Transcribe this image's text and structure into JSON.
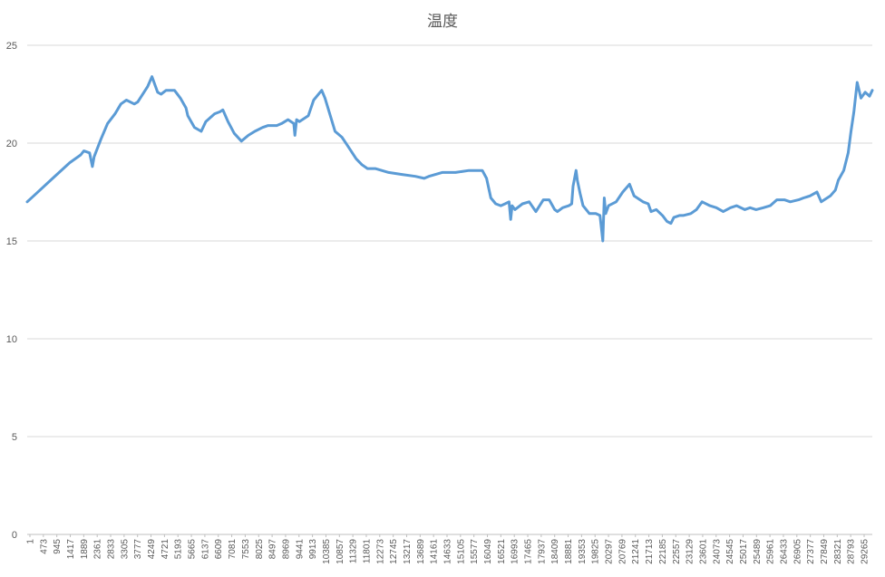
{
  "chart_data": {
    "type": "line",
    "title": "温度",
    "xlabel": "",
    "ylabel": "",
    "ylim": [
      0,
      25
    ],
    "yticks": [
      0,
      5,
      10,
      15,
      20,
      25
    ],
    "grid": true,
    "legend": "none",
    "xticks": [
      "1",
      "473",
      "945",
      "1417",
      "1889",
      "2361",
      "2833",
      "3305",
      "3777",
      "4249",
      "4721",
      "5193",
      "5665",
      "6137",
      "6609",
      "7081",
      "7553",
      "8025",
      "8497",
      "8969",
      "9441",
      "9913",
      "10385",
      "10857",
      "11329",
      "11801",
      "12273",
      "12745",
      "13217",
      "13689",
      "14161",
      "14633",
      "15105",
      "15577",
      "16049",
      "16521",
      "16993",
      "17465",
      "17937",
      "18409",
      "18881",
      "19353",
      "19825",
      "20297",
      "20769",
      "21241",
      "21713",
      "22185",
      "22557",
      "23129",
      "23601",
      "24073",
      "24545",
      "25017",
      "25489",
      "25961",
      "26433",
      "26905",
      "27377",
      "27849",
      "28321",
      "28793",
      "29265"
    ],
    "x_range": [
      1,
      29800
    ],
    "series": [
      {
        "name": "",
        "color": "#5b9bd5",
        "x": [
          1,
          300,
          900,
          1500,
          1889,
          2000,
          2200,
          2300,
          2361,
          2600,
          2833,
          3100,
          3305,
          3500,
          3777,
          3900,
          4249,
          4400,
          4600,
          4721,
          4900,
          5193,
          5400,
          5600,
          5665,
          5900,
          6137,
          6300,
          6609,
          6800,
          6900,
          7081,
          7300,
          7553,
          7800,
          8025,
          8300,
          8497,
          8800,
          8969,
          9200,
          9400,
          9441,
          9500,
          9600,
          9913,
          10100,
          10385,
          10500,
          10857,
          11100,
          11329,
          11600,
          11801,
          12000,
          12273,
          12745,
          13217,
          13689,
          14000,
          14161,
          14633,
          15105,
          15577,
          15900,
          16049,
          16200,
          16350,
          16521,
          16700,
          16850,
          16993,
          17050,
          17100,
          17200,
          17465,
          17700,
          17937,
          18200,
          18409,
          18600,
          18700,
          18881,
          19100,
          19200,
          19250,
          19353,
          19400,
          19500,
          19600,
          19825,
          20050,
          20200,
          20297,
          20350,
          20400,
          20500,
          20769,
          21000,
          21241,
          21400,
          21713,
          21900,
          22000,
          22185,
          22400,
          22557,
          22700,
          22800,
          23000,
          23129,
          23400,
          23601,
          23800,
          24073,
          24300,
          24545,
          24800,
          25017,
          25300,
          25489,
          25700,
          25961,
          26200,
          26433,
          26700,
          26905,
          27200,
          27377,
          27600,
          27849,
          28000,
          28321,
          28500,
          28600,
          28793,
          28950,
          29050,
          29150,
          29265,
          29400,
          29550,
          29700,
          29800
        ],
        "y": [
          17.0,
          17.4,
          18.2,
          19.0,
          19.4,
          19.6,
          19.5,
          18.8,
          19.3,
          20.2,
          21.0,
          21.5,
          22.0,
          22.2,
          22.0,
          22.1,
          22.9,
          23.4,
          22.6,
          22.5,
          22.7,
          22.7,
          22.3,
          21.8,
          21.4,
          20.8,
          20.6,
          21.1,
          21.5,
          21.6,
          21.7,
          21.1,
          20.5,
          20.1,
          20.4,
          20.6,
          20.8,
          20.9,
          20.9,
          21.0,
          21.2,
          21.0,
          20.4,
          21.2,
          21.1,
          21.4,
          22.2,
          22.7,
          22.3,
          20.6,
          20.3,
          19.8,
          19.2,
          18.9,
          18.7,
          18.7,
          18.5,
          18.4,
          18.3,
          18.2,
          18.3,
          18.5,
          18.5,
          18.6,
          18.6,
          18.6,
          18.2,
          17.2,
          16.9,
          16.8,
          16.9,
          17.0,
          16.1,
          16.8,
          16.6,
          16.9,
          17.0,
          16.5,
          17.1,
          17.1,
          16.6,
          16.5,
          16.7,
          16.8,
          16.9,
          17.8,
          18.6,
          18.1,
          17.4,
          16.8,
          16.4,
          16.4,
          16.3,
          15.0,
          17.2,
          16.4,
          16.8,
          17.0,
          17.5,
          17.9,
          17.3,
          17.0,
          16.9,
          16.5,
          16.6,
          16.3,
          16.0,
          15.9,
          16.2,
          16.3,
          16.3,
          16.4,
          16.6,
          17.0,
          16.8,
          16.7,
          16.5,
          16.7,
          16.8,
          16.6,
          16.7,
          16.6,
          16.7,
          16.8,
          17.1,
          17.1,
          17.0,
          17.1,
          17.2,
          17.3,
          17.5,
          17.0,
          17.3,
          17.6,
          18.1,
          18.6,
          19.5,
          20.6,
          21.6,
          23.1,
          22.3,
          22.6,
          22.4,
          22.7
        ]
      }
    ]
  }
}
